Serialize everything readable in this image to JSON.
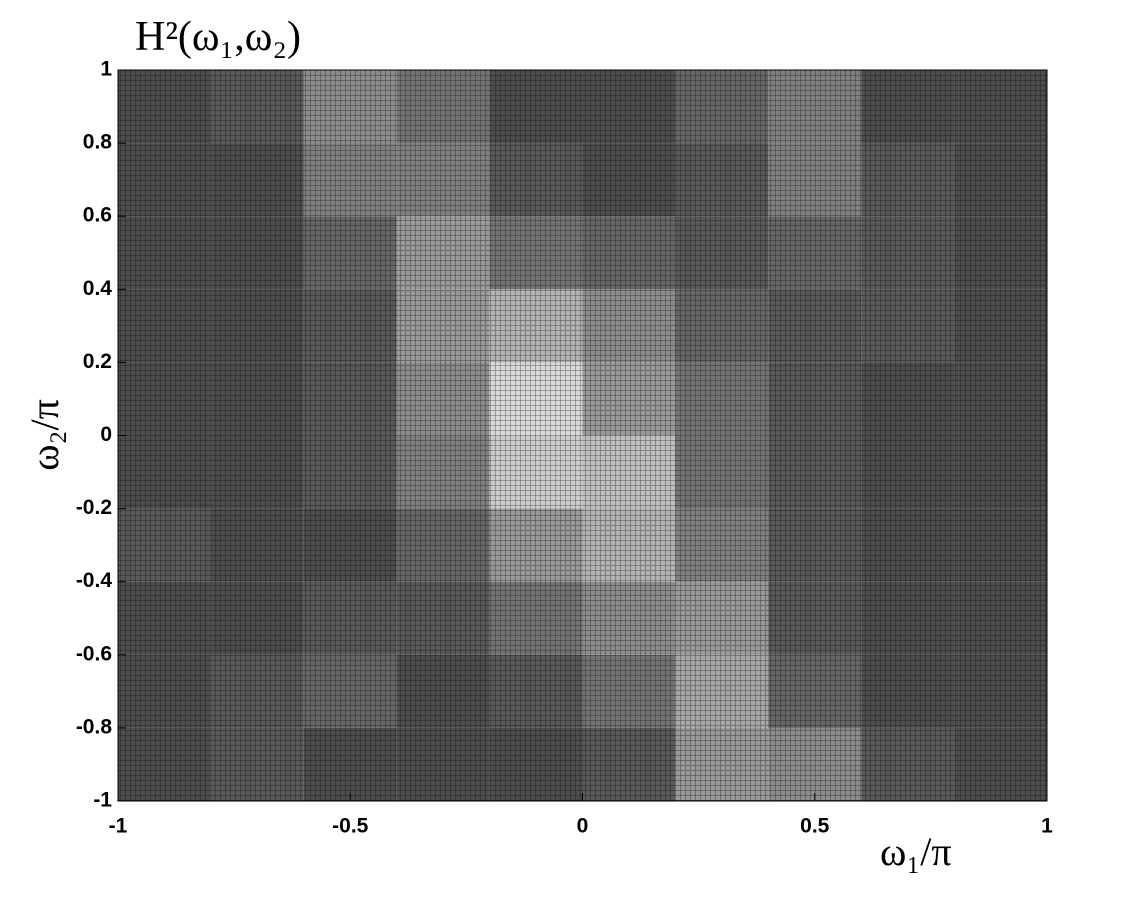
{
  "chart_data": {
    "type": "heatmap",
    "title": "H²(ω₁,ω₂)",
    "xlabel": "ω₁/π",
    "ylabel": "ω₂/π",
    "x": [
      -0.9,
      -0.7,
      -0.5,
      -0.3,
      -0.1,
      0.1,
      0.3,
      0.5,
      0.7,
      0.9
    ],
    "y": [
      -0.9,
      -0.7,
      -0.5,
      -0.3,
      -0.1,
      0.1,
      0.3,
      0.5,
      0.7,
      0.9
    ],
    "z": [
      [
        0.3,
        0.35,
        0.3,
        0.3,
        0.3,
        0.35,
        0.6,
        0.55,
        0.35,
        0.3
      ],
      [
        0.3,
        0.35,
        0.4,
        0.3,
        0.35,
        0.45,
        0.65,
        0.4,
        0.3,
        0.3
      ],
      [
        0.3,
        0.3,
        0.35,
        0.35,
        0.45,
        0.55,
        0.6,
        0.35,
        0.3,
        0.3
      ],
      [
        0.35,
        0.3,
        0.3,
        0.4,
        0.6,
        0.7,
        0.5,
        0.35,
        0.3,
        0.3
      ],
      [
        0.3,
        0.3,
        0.35,
        0.5,
        0.8,
        0.75,
        0.45,
        0.35,
        0.3,
        0.3
      ],
      [
        0.3,
        0.3,
        0.35,
        0.55,
        0.85,
        0.6,
        0.45,
        0.35,
        0.3,
        0.3
      ],
      [
        0.3,
        0.3,
        0.35,
        0.6,
        0.7,
        0.55,
        0.4,
        0.35,
        0.35,
        0.3
      ],
      [
        0.3,
        0.3,
        0.4,
        0.6,
        0.45,
        0.4,
        0.35,
        0.4,
        0.35,
        0.3
      ],
      [
        0.3,
        0.3,
        0.5,
        0.5,
        0.35,
        0.3,
        0.35,
        0.5,
        0.35,
        0.3
      ],
      [
        0.3,
        0.35,
        0.55,
        0.45,
        0.3,
        0.3,
        0.4,
        0.5,
        0.3,
        0.3
      ]
    ],
    "xlim": [
      -1,
      1
    ],
    "ylim": [
      -1,
      1
    ],
    "xticks": [
      -1,
      -0.5,
      0,
      0.5,
      1
    ],
    "yticks": [
      -1,
      -0.8,
      -0.6,
      -0.4,
      -0.2,
      0,
      0.2,
      0.4,
      0.6,
      0.8,
      1
    ]
  }
}
